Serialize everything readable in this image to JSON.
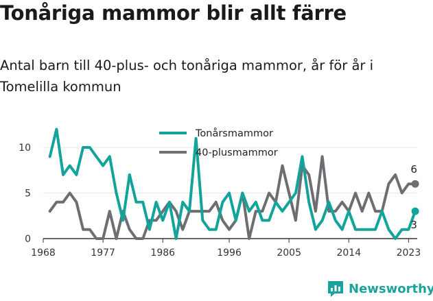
{
  "title": "Tonåriga mammor blir allt färre",
  "subtitle": "Antal barn till 40-plus- och tonåriga mammor, år för år i Tomelilla kommun",
  "brand": {
    "name": "Newsworthy",
    "icon": "newsworthy-logo-icon",
    "color": "#1aa39a"
  },
  "chart_data": {
    "type": "line",
    "title": "Tonåriga mammor blir allt färre",
    "subtitle": "Antal barn till 40-plus- och tonåriga mammor, år för år i Tomelilla kommun",
    "xlabel": "",
    "ylabel": "",
    "xlim": [
      1968,
      2024
    ],
    "ylim": [
      0,
      12
    ],
    "x_ticks": [
      "1968",
      "1977",
      "1986",
      "1996",
      "2005",
      "2014",
      "2023"
    ],
    "y_ticks": [
      "0",
      "5",
      "10"
    ],
    "grid": "horizontal",
    "legend": "top-center",
    "x": [
      1969,
      1970,
      1971,
      1972,
      1973,
      1974,
      1975,
      1976,
      1977,
      1978,
      1979,
      1980,
      1981,
      1982,
      1983,
      1984,
      1985,
      1986,
      1987,
      1988,
      1989,
      1990,
      1991,
      1992,
      1993,
      1994,
      1995,
      1996,
      1997,
      1998,
      1999,
      2000,
      2001,
      2002,
      2003,
      2004,
      2005,
      2006,
      2007,
      2008,
      2009,
      2010,
      2011,
      2012,
      2013,
      2014,
      2015,
      2016,
      2017,
      2018,
      2019,
      2020,
      2021,
      2022,
      2023,
      2024
    ],
    "series": [
      {
        "name": "Tonårsmammor",
        "color": "#12a39a",
        "end_label": "3",
        "values": [
          9,
          12,
          7,
          8,
          7,
          10,
          10,
          9,
          8,
          9,
          5,
          2,
          7,
          4,
          4,
          1,
          4,
          2,
          4,
          0,
          4,
          3,
          11,
          2,
          1,
          1,
          4,
          5,
          2,
          5,
          3,
          4,
          2,
          2,
          4,
          3,
          4,
          5,
          9,
          4,
          1,
          2,
          4,
          2,
          1,
          3,
          1,
          1,
          1,
          1,
          3,
          1,
          0,
          1,
          1,
          3
        ]
      },
      {
        "name": "40-plusmammor",
        "color": "#6d6d72",
        "end_label": "6",
        "values": [
          3,
          4,
          4,
          5,
          4,
          1,
          1,
          0,
          0,
          3,
          0,
          3,
          1,
          0,
          0,
          2,
          2,
          3,
          4,
          3,
          1,
          3,
          3,
          3,
          3,
          4,
          2,
          1,
          2,
          5,
          0,
          3,
          3,
          5,
          4,
          8,
          5,
          2,
          8,
          7,
          3,
          9,
          3,
          3,
          4,
          3,
          5,
          3,
          5,
          3,
          3,
          6,
          7,
          5,
          6,
          6
        ]
      }
    ]
  }
}
